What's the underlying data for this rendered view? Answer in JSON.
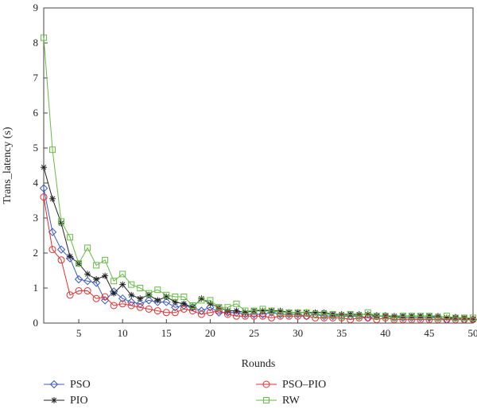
{
  "chart_data": {
    "type": "line",
    "title": "",
    "xlabel": "Rounds",
    "ylabel": "Trans_latency (s)",
    "xlim": [
      1,
      50
    ],
    "ylim": [
      0,
      9
    ],
    "xticks": [
      5,
      10,
      15,
      20,
      25,
      30,
      35,
      40,
      45,
      50
    ],
    "yticks": [
      0,
      1,
      2,
      3,
      4,
      5,
      6,
      7,
      8,
      9
    ],
    "grid": false,
    "legend_position": "bottom",
    "x": [
      1,
      2,
      3,
      4,
      5,
      6,
      7,
      8,
      9,
      10,
      11,
      12,
      13,
      14,
      15,
      16,
      17,
      18,
      19,
      20,
      21,
      22,
      23,
      24,
      25,
      26,
      27,
      28,
      29,
      30,
      31,
      32,
      33,
      34,
      35,
      36,
      37,
      38,
      39,
      40,
      41,
      42,
      43,
      44,
      45,
      46,
      47,
      48,
      49,
      50
    ],
    "series": [
      {
        "name": "PSO",
        "color": "#3a5bbf",
        "marker": "diamond",
        "values": [
          3.85,
          2.6,
          2.1,
          1.85,
          1.25,
          1.2,
          1.15,
          0.65,
          0.9,
          0.7,
          0.6,
          0.55,
          0.65,
          0.6,
          0.6,
          0.45,
          0.5,
          0.45,
          0.35,
          0.45,
          0.3,
          0.3,
          0.3,
          0.25,
          0.25,
          0.25,
          0.3,
          0.25,
          0.25,
          0.25,
          0.2,
          0.25,
          0.2,
          0.2,
          0.2,
          0.2,
          0.2,
          0.15,
          0.2,
          0.2,
          0.15,
          0.15,
          0.15,
          0.15,
          0.15,
          0.15,
          0.1,
          0.15,
          0.1,
          0.1
        ]
      },
      {
        "name": "PIO",
        "color": "#222222",
        "marker": "star",
        "values": [
          4.45,
          3.55,
          2.85,
          1.9,
          1.7,
          1.4,
          1.25,
          1.35,
          0.85,
          1.1,
          0.8,
          0.7,
          0.8,
          0.65,
          0.75,
          0.6,
          0.55,
          0.45,
          0.7,
          0.55,
          0.45,
          0.35,
          0.35,
          0.3,
          0.35,
          0.35,
          0.35,
          0.35,
          0.3,
          0.3,
          0.3,
          0.3,
          0.3,
          0.25,
          0.25,
          0.25,
          0.25,
          0.25,
          0.2,
          0.2,
          0.2,
          0.2,
          0.2,
          0.2,
          0.2,
          0.2,
          0.15,
          0.15,
          0.15,
          0.1
        ]
      },
      {
        "name": "PSO–PIO",
        "color": "#e03030",
        "marker": "circle",
        "values": [
          3.6,
          2.1,
          1.8,
          0.8,
          0.92,
          0.92,
          0.7,
          0.75,
          0.5,
          0.55,
          0.5,
          0.45,
          0.4,
          0.35,
          0.3,
          0.3,
          0.4,
          0.35,
          0.25,
          0.3,
          0.35,
          0.25,
          0.2,
          0.2,
          0.2,
          0.2,
          0.15,
          0.2,
          0.2,
          0.2,
          0.2,
          0.15,
          0.15,
          0.15,
          0.15,
          0.1,
          0.15,
          0.15,
          0.1,
          0.15,
          0.1,
          0.1,
          0.1,
          0.1,
          0.1,
          0.1,
          0.1,
          0.1,
          0.1,
          0.1
        ]
      },
      {
        "name": "RW",
        "color": "#66bb44",
        "marker": "square",
        "values": [
          8.15,
          4.95,
          2.9,
          2.45,
          1.7,
          2.15,
          1.65,
          1.8,
          1.2,
          1.4,
          1.1,
          1.0,
          0.85,
          0.95,
          0.8,
          0.75,
          0.75,
          0.5,
          0.65,
          0.65,
          0.45,
          0.45,
          0.55,
          0.35,
          0.35,
          0.4,
          0.35,
          0.3,
          0.3,
          0.3,
          0.3,
          0.25,
          0.25,
          0.25,
          0.2,
          0.25,
          0.2,
          0.3,
          0.2,
          0.2,
          0.15,
          0.2,
          0.2,
          0.2,
          0.2,
          0.15,
          0.2,
          0.15,
          0.15,
          0.15
        ]
      }
    ]
  }
}
